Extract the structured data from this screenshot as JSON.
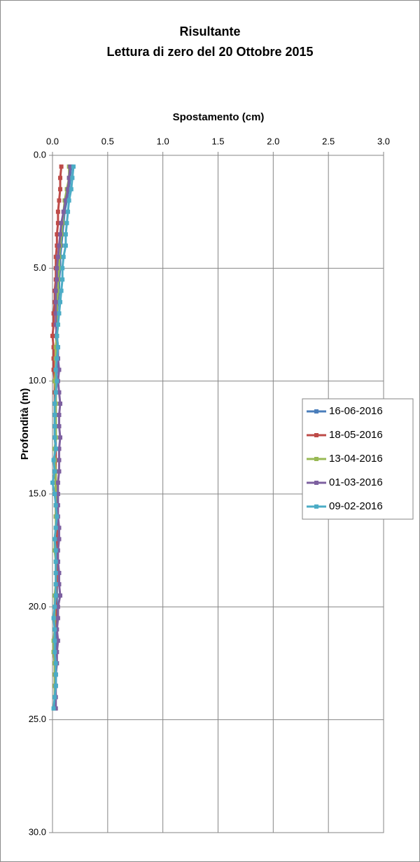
{
  "chart_data": {
    "type": "line",
    "title": "Risultante",
    "subtitle": "Lettura di zero del 20 Ottobre 2015",
    "x_label": "Spostamento (cm)",
    "y_label": "Profondità (m)",
    "xlim": [
      0,
      3
    ],
    "xticks": [
      {
        "value": 0,
        "label": "0.0"
      },
      0.5,
      {
        "value": 1,
        "label": "1.0"
      },
      1.5,
      {
        "value": 2,
        "label": "2.0"
      },
      2.5,
      {
        "value": 3,
        "label": "3.0"
      }
    ],
    "ylim": [
      0,
      30
    ],
    "yticks": [
      {
        "value": 0,
        "label": "0.0"
      },
      {
        "value": 5,
        "label": "5.0"
      },
      {
        "value": 10,
        "label": "10.0"
      },
      {
        "value": 15,
        "label": "15.0"
      },
      {
        "value": 20,
        "label": "20.0"
      },
      {
        "value": 25,
        "label": "25.0"
      },
      {
        "value": 30,
        "label": "30.0"
      }
    ],
    "y_inverted": true,
    "grid": true,
    "legend": "right",
    "y": [
      0.5,
      1,
      1.5,
      2,
      2.5,
      3,
      3.5,
      4,
      4.5,
      5,
      5.5,
      6,
      6.5,
      7,
      7.5,
      8,
      8.5,
      9,
      9.5,
      10,
      10.5,
      11,
      11.5,
      12,
      12.5,
      13,
      13.5,
      14,
      14.5,
      15,
      15.5,
      16,
      16.5,
      17,
      17.5,
      18,
      18.5,
      19,
      19.5,
      20,
      20.5,
      21,
      21.5,
      22,
      22.5,
      23,
      23.5,
      24,
      24.5
    ],
    "series": [
      {
        "name": "16-06-2016",
        "color": "#4a7ebb",
        "values": [
          0.17,
          0.16,
          0.15,
          0.13,
          0.11,
          0.1,
          0.09,
          0.08,
          0.07,
          0.07,
          0.06,
          0.06,
          0.05,
          0.04,
          0.04,
          0.03,
          0.04,
          0.05,
          0.04,
          0.03,
          0.03,
          0.03,
          0.03,
          0.03,
          0.03,
          0.03,
          0.03,
          0.02,
          0.03,
          0.03,
          0.04,
          0.04,
          0.04,
          0.04,
          0.04,
          0.05,
          0.04,
          0.04,
          0.04,
          0.04,
          0.03,
          0.03,
          0.03,
          0.03,
          0.03,
          0.03,
          0.03,
          0.02,
          0.02
        ]
      },
      {
        "name": "18-05-2016",
        "color": "#be4b48",
        "values": [
          0.08,
          0.07,
          0.07,
          0.06,
          0.05,
          0.05,
          0.04,
          0.04,
          0.03,
          0.03,
          0.03,
          0.02,
          0.02,
          0.01,
          0.01,
          0.0,
          0.01,
          0.01,
          0.01,
          0.02,
          0.02,
          0.02,
          0.02,
          0.02,
          0.02,
          0.03,
          0.03,
          0.03,
          0.03,
          0.03,
          0.03,
          0.03,
          0.04,
          0.04,
          0.04,
          0.04,
          0.04,
          0.04,
          0.03,
          0.03,
          0.03,
          0.02,
          0.02,
          0.01,
          0.02,
          0.02,
          0.02,
          0.02,
          0.02
        ]
      },
      {
        "name": "13-04-2016",
        "color": "#98b954",
        "values": [
          0.15,
          0.15,
          0.13,
          0.11,
          0.1,
          0.09,
          0.08,
          0.07,
          0.06,
          0.06,
          0.05,
          0.05,
          0.04,
          0.04,
          0.05,
          0.04,
          0.03,
          0.03,
          0.03,
          0.02,
          0.03,
          0.03,
          0.03,
          0.03,
          0.03,
          0.02,
          0.02,
          0.03,
          0.03,
          0.03,
          0.03,
          0.03,
          0.03,
          0.02,
          0.02,
          0.03,
          0.03,
          0.03,
          0.02,
          0.02,
          0.02,
          0.02,
          0.01,
          0.01,
          0.02,
          0.02,
          0.02,
          0.02,
          0.02
        ]
      },
      {
        "name": "01-03-2016",
        "color": "#7d60a0",
        "values": [
          0.16,
          0.15,
          0.14,
          0.12,
          0.1,
          0.08,
          0.07,
          0.06,
          0.05,
          0.04,
          0.04,
          0.03,
          0.03,
          0.03,
          0.03,
          0.04,
          0.05,
          0.05,
          0.06,
          0.05,
          0.06,
          0.07,
          0.06,
          0.06,
          0.07,
          0.06,
          0.06,
          0.06,
          0.05,
          0.05,
          0.05,
          0.05,
          0.06,
          0.06,
          0.05,
          0.05,
          0.06,
          0.06,
          0.07,
          0.05,
          0.05,
          0.04,
          0.05,
          0.04,
          0.04,
          0.03,
          0.03,
          0.03,
          0.03
        ]
      },
      {
        "name": "09-02-2016",
        "color": "#4bacc6",
        "values": [
          0.19,
          0.18,
          0.17,
          0.15,
          0.14,
          0.13,
          0.12,
          0.12,
          0.1,
          0.09,
          0.09,
          0.08,
          0.07,
          0.06,
          0.05,
          0.04,
          0.05,
          0.04,
          0.03,
          0.04,
          0.03,
          0.02,
          0.02,
          0.02,
          0.02,
          0.03,
          0.01,
          0.02,
          0.0,
          0.02,
          0.03,
          0.04,
          0.03,
          0.02,
          0.03,
          0.03,
          0.03,
          0.03,
          0.03,
          0.02,
          0.01,
          0.02,
          0.02,
          0.02,
          0.03,
          0.03,
          0.03,
          0.02,
          0.01
        ]
      }
    ]
  }
}
